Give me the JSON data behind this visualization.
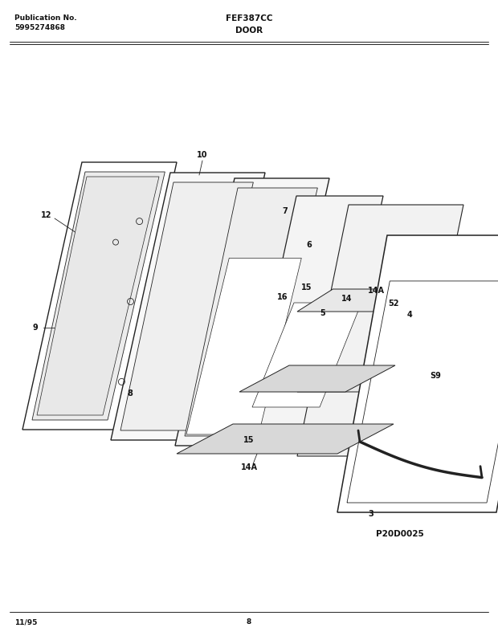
{
  "pub_no_label": "Publication No.",
  "pub_no": "5995274868",
  "model": "FEF387CC",
  "section": "DOOR",
  "diagram_id": "P20D0025",
  "date": "11/95",
  "page": "8",
  "bg": "#ffffff",
  "lc": "#222222",
  "tc": "#111111",
  "panel_fc": "#f9f9f9",
  "panel_fc2": "#f0f0f0",
  "rail_fc": "#d0d0d0"
}
